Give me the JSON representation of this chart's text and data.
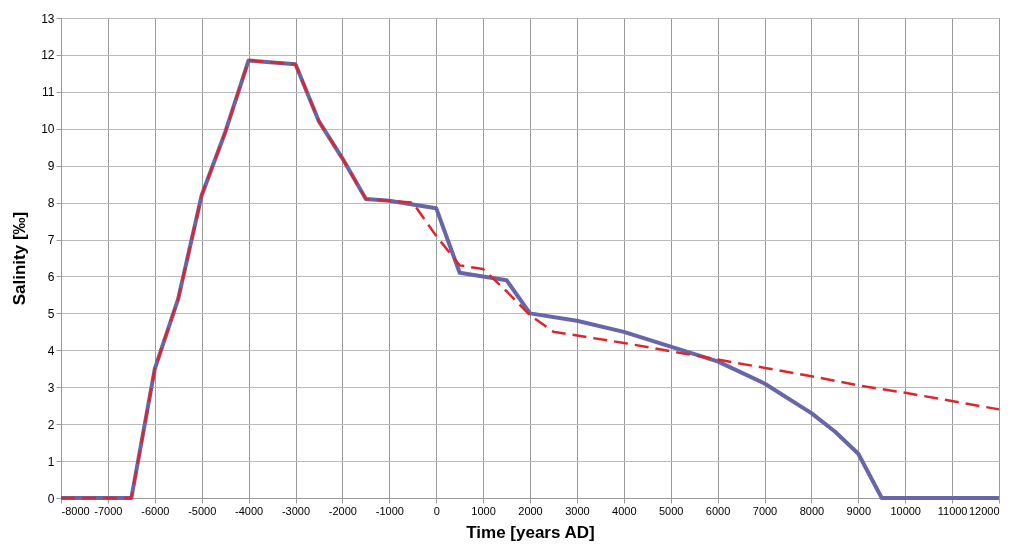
{
  "chart_data": {
    "type": "line",
    "xlabel": "Time [years AD]",
    "ylabel": "Salinity [‰]",
    "xlim": [
      -8000,
      12000
    ],
    "xticks": [
      -8000,
      -7000,
      -6000,
      -5000,
      -4000,
      -3000,
      -2000,
      -1000,
      0,
      1000,
      2000,
      3000,
      4000,
      5000,
      6000,
      7000,
      8000,
      9000,
      10000,
      11000,
      12000
    ],
    "ylim": [
      0,
      13
    ],
    "yticks": [
      0,
      1,
      2,
      3,
      4,
      5,
      6,
      7,
      8,
      9,
      10,
      11,
      12,
      13
    ],
    "grid": true,
    "series": [
      {
        "color": "#6666a8",
        "line_style": "solid",
        "x": [
          -8000,
          -6500,
          -6000,
          -5500,
          -5000,
          -4500,
          -4000,
          -3000,
          -2500,
          -2000,
          -1500,
          -1000,
          -500,
          0,
          500,
          1000,
          1500,
          2000,
          3000,
          4000,
          5000,
          6000,
          7000,
          8000,
          8500,
          9000,
          9500,
          12000
        ],
        "values": [
          0,
          0,
          3.5,
          5.4,
          8.2,
          9.9,
          11.85,
          11.75,
          10.2,
          9.2,
          8.1,
          8.05,
          7.95,
          7.85,
          6.1,
          6.0,
          5.9,
          5.0,
          4.8,
          4.5,
          4.1,
          3.7,
          3.1,
          2.3,
          1.8,
          1.2,
          0,
          0
        ]
      },
      {
        "color": "#e0242a",
        "line_style": "dashed",
        "x": [
          -8000,
          -6500,
          -6000,
          -5500,
          -5000,
          -4500,
          -4000,
          -3000,
          -2500,
          -2000,
          -1500,
          -1000,
          -500,
          0,
          500,
          1000,
          1500,
          2000,
          2500,
          4000,
          6000,
          8000,
          9000,
          10000,
          12000
        ],
        "values": [
          0,
          0,
          3.5,
          5.4,
          8.2,
          9.9,
          11.85,
          11.75,
          10.2,
          9.2,
          8.1,
          8.05,
          8.0,
          7.1,
          6.3,
          6.2,
          5.6,
          4.95,
          4.5,
          4.2,
          3.75,
          3.3,
          3.05,
          2.85,
          2.4
        ]
      }
    ]
  }
}
